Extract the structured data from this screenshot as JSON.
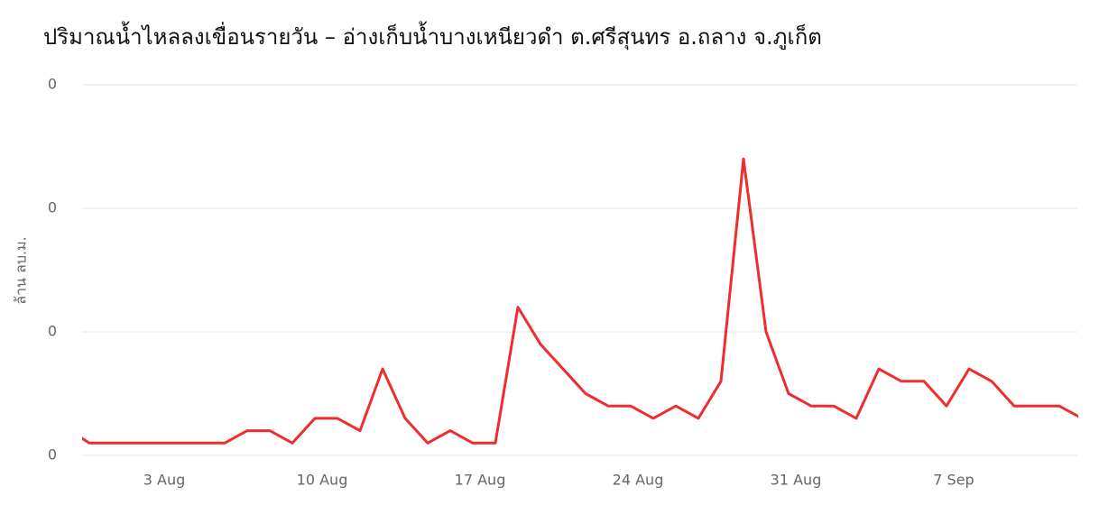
{
  "chart_data": {
    "type": "line",
    "title": "ปริมาณน้ำไหลลงเขื่อนรายวัน – อ่างเก็บน้ำบางเหนียวดำ ต.ศรีสุนทร อ.ถลาง จ.ภูเก็ต",
    "y_label": "ล้าน ลบ.ม.",
    "categories": [
      null,
      null,
      null,
      null,
      "3 Aug",
      null,
      null,
      null,
      null,
      null,
      null,
      "10 Aug",
      null,
      null,
      null,
      null,
      null,
      null,
      "17 Aug",
      null,
      null,
      null,
      null,
      null,
      null,
      "24 Aug",
      null,
      null,
      null,
      null,
      null,
      null,
      "31 Aug",
      null,
      null,
      null,
      null,
      null,
      null,
      "7 Sep",
      null,
      null,
      null,
      null,
      null,
      null
    ],
    "series": [
      {
        "color": "#ee2d2d",
        "values": [
          0.022,
          0.01,
          0.01,
          0.01,
          0.01,
          0.01,
          0.01,
          0.01,
          0.02,
          0.02,
          0.01,
          0.03,
          0.03,
          0.02,
          0.07,
          0.03,
          0.01,
          0.02,
          0.01,
          0.01,
          0.12,
          0.09,
          0.07,
          0.05,
          0.04,
          0.04,
          0.03,
          0.04,
          0.03,
          0.06,
          0.24,
          0.1,
          0.05,
          0.04,
          0.04,
          0.03,
          0.07,
          0.06,
          0.06,
          0.04,
          0.07,
          0.06,
          0.04,
          0.04,
          0.04,
          0.03
        ]
      }
    ],
    "ylim": [
      0,
      0.3
    ],
    "yticks": [
      {
        "value": 0,
        "label": "0"
      },
      {
        "value": 0.1,
        "label": "0"
      },
      {
        "value": 0.2,
        "label": "0"
      },
      {
        "value": 0.3,
        "label": "0"
      }
    ],
    "grid": true
  }
}
